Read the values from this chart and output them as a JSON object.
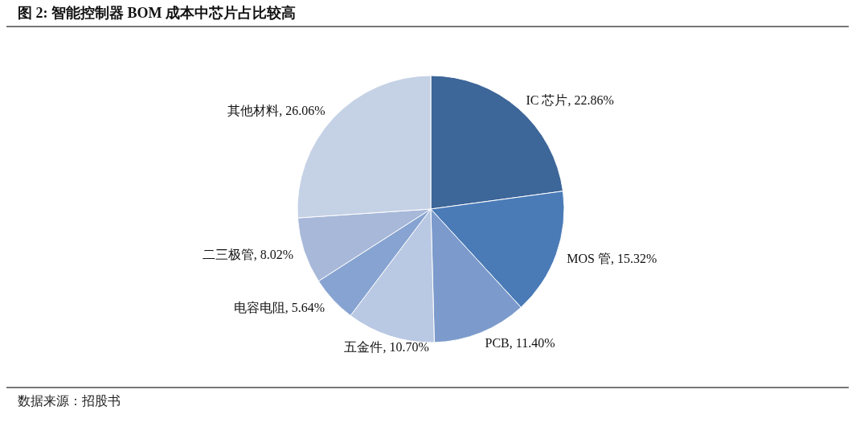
{
  "chart_data": {
    "type": "pie",
    "title": "图 2: 智能控制器 BOM 成本中芯片占比较高",
    "categories": [
      "IC 芯片",
      "MOS 管",
      "PCB",
      "五金件",
      "电容电阻",
      "二三极管",
      "其他材料"
    ],
    "values": [
      22.86,
      15.32,
      11.4,
      10.7,
      5.64,
      8.02,
      26.06
    ],
    "colors": [
      "#3d6699",
      "#4a7bb7",
      "#7c9bcc",
      "#b9c8e3",
      "#87a3d1",
      "#a7b8d9",
      "#c5d1e5"
    ],
    "value_labels": [
      "22.86%",
      "15.32%",
      "11.40%",
      "10.70%",
      "5.64%",
      "8.02%",
      "26.06%"
    ],
    "annotations": [
      "数据来源：招股书"
    ]
  }
}
